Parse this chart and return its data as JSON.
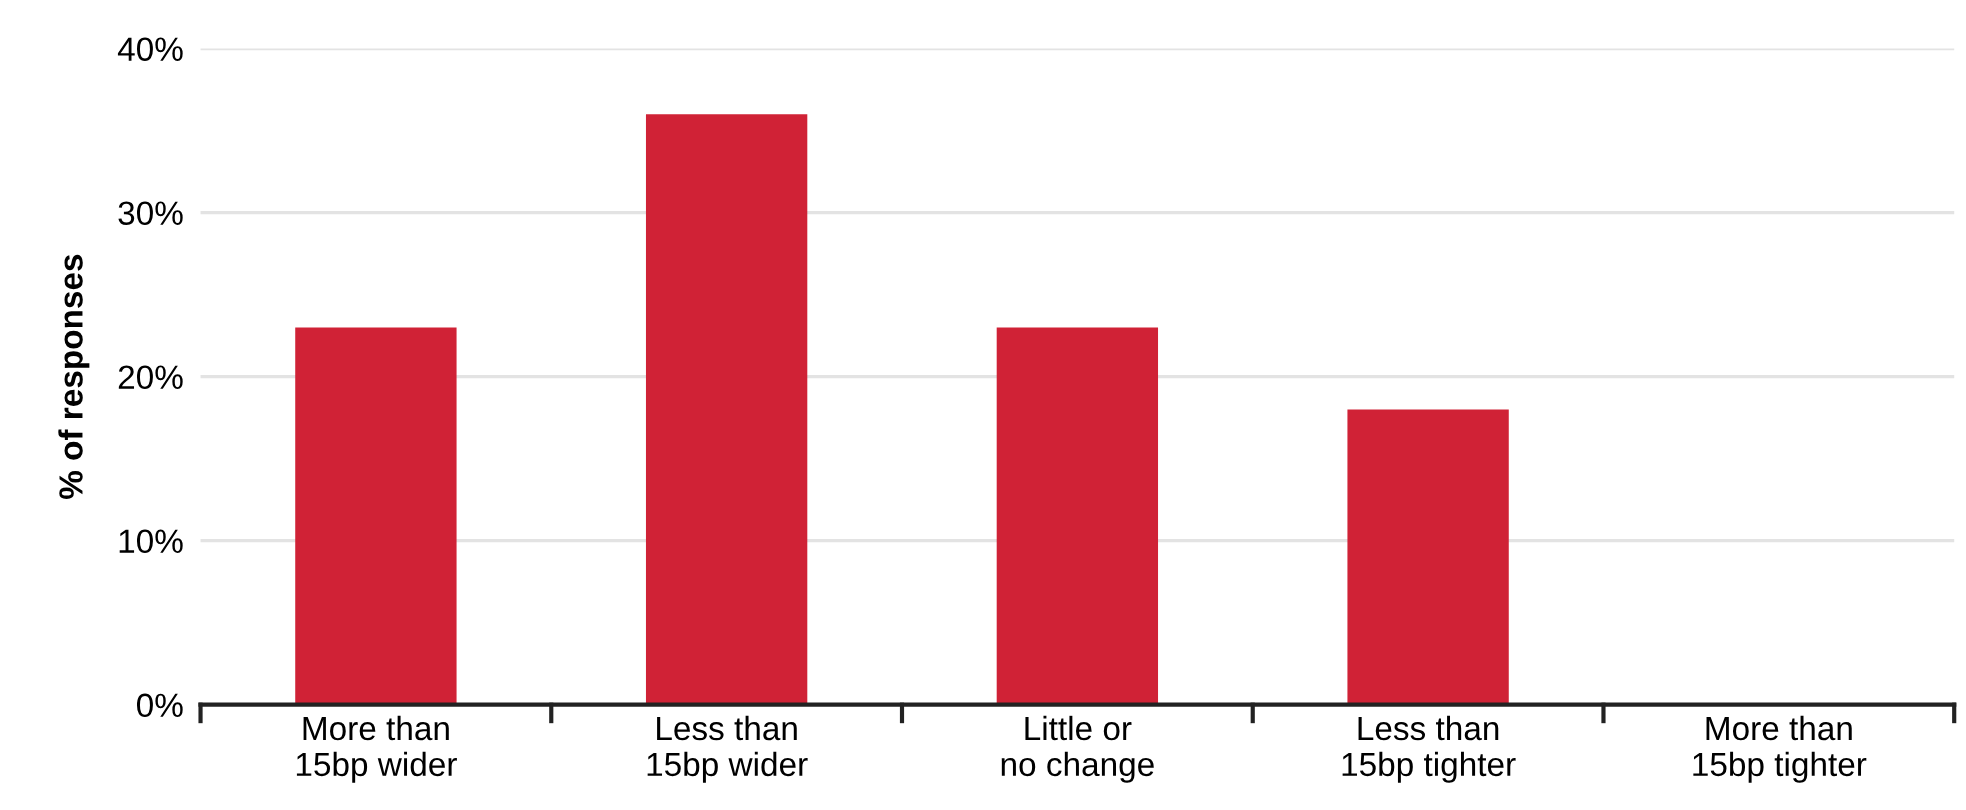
{
  "chart_data": {
    "type": "bar",
    "ylabel": "% of responses",
    "categories": [
      "More than\n15bp wider",
      "Less than\n15bp wider",
      "Little or\nno change",
      "Less than\n15bp tighter",
      "More than\n15bp tighter"
    ],
    "values": [
      23,
      36,
      23,
      18,
      0
    ],
    "color": "#d02236",
    "ylim": [
      0,
      40
    ],
    "yticks": [
      {
        "value": 0,
        "label": "0%"
      },
      {
        "value": 10,
        "label": "10%"
      },
      {
        "value": 20,
        "label": "20%"
      },
      {
        "value": 30,
        "label": "30%"
      },
      {
        "value": 40,
        "label": "40%"
      }
    ],
    "grid": "y"
  }
}
